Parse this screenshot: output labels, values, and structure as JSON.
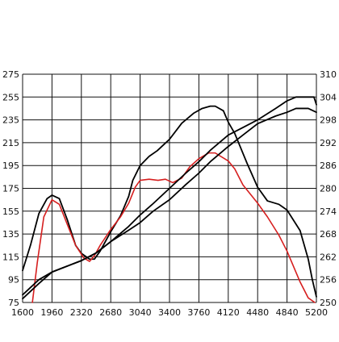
{
  "chart_data": {
    "type": "line",
    "title": "",
    "xlabel": "",
    "ylabel": "",
    "y2label": "",
    "grid": true,
    "legend": "none",
    "x_range": [
      1600,
      5200
    ],
    "y_left_range": [
      75,
      275
    ],
    "y_right_range": [
      250,
      310
    ],
    "x_ticks": [
      1600,
      1960,
      2320,
      2680,
      3040,
      3400,
      3760,
      4120,
      4480,
      4840,
      5200
    ],
    "y_left_ticks": [
      75,
      95,
      115,
      135,
      155,
      175,
      195,
      215,
      235,
      255,
      275
    ],
    "y_right_ticks": [
      250,
      256,
      262,
      268,
      274,
      280,
      286,
      292,
      298,
      304,
      310
    ],
    "colors": {
      "grid": "#111111",
      "black_series": "#000000",
      "red_series": "#d61f1f"
    },
    "series": [
      {
        "color_key": "black_series",
        "axis": "left",
        "values": [
          [
            1600,
            103
          ],
          [
            1700,
            126
          ],
          [
            1800,
            153
          ],
          [
            1900,
            166
          ],
          [
            1960,
            169
          ],
          [
            2050,
            166
          ],
          [
            2150,
            147
          ],
          [
            2250,
            125
          ],
          [
            2320,
            118
          ],
          [
            2420,
            113
          ],
          [
            2480,
            113
          ],
          [
            2550,
            120
          ],
          [
            2680,
            137
          ],
          [
            2800,
            151
          ],
          [
            2900,
            168
          ],
          [
            2950,
            182
          ],
          [
            3040,
            195
          ],
          [
            3150,
            203
          ],
          [
            3250,
            208
          ],
          [
            3400,
            218
          ],
          [
            3550,
            232
          ],
          [
            3700,
            241
          ],
          [
            3800,
            245
          ],
          [
            3900,
            247
          ],
          [
            3960,
            247
          ],
          [
            4060,
            243
          ],
          [
            4120,
            233
          ],
          [
            4200,
            223
          ],
          [
            4350,
            197
          ],
          [
            4480,
            176
          ],
          [
            4600,
            164
          ],
          [
            4740,
            161
          ],
          [
            4840,
            156
          ],
          [
            5000,
            138
          ],
          [
            5100,
            113
          ],
          [
            5150,
            95
          ],
          [
            5200,
            80
          ]
        ]
      },
      {
        "color_key": "red_series",
        "axis": "left",
        "values": [
          [
            1720,
            75
          ],
          [
            1780,
            110
          ],
          [
            1860,
            150
          ],
          [
            1960,
            165
          ],
          [
            2050,
            161
          ],
          [
            2150,
            143
          ],
          [
            2250,
            125
          ],
          [
            2350,
            114
          ],
          [
            2420,
            111
          ],
          [
            2480,
            116
          ],
          [
            2550,
            125
          ],
          [
            2680,
            139
          ],
          [
            2800,
            150
          ],
          [
            2900,
            162
          ],
          [
            2980,
            176
          ],
          [
            3040,
            182
          ],
          [
            3150,
            183
          ],
          [
            3260,
            182
          ],
          [
            3350,
            183
          ],
          [
            3440,
            180
          ],
          [
            3550,
            184
          ],
          [
            3650,
            194
          ],
          [
            3760,
            201
          ],
          [
            3880,
            206
          ],
          [
            3960,
            206
          ],
          [
            4120,
            199
          ],
          [
            4200,
            192
          ],
          [
            4300,
            178
          ],
          [
            4480,
            162
          ],
          [
            4600,
            150
          ],
          [
            4740,
            134
          ],
          [
            4840,
            120
          ],
          [
            5000,
            93
          ],
          [
            5100,
            79
          ],
          [
            5180,
            75
          ]
        ]
      },
      {
        "color_key": "black_series",
        "axis": "right",
        "values": [
          [
            1600,
            251
          ],
          [
            1800,
            255
          ],
          [
            1960,
            258
          ],
          [
            2200,
            260
          ],
          [
            2320,
            261
          ],
          [
            2500,
            263
          ],
          [
            2680,
            266
          ],
          [
            2900,
            270
          ],
          [
            3040,
            273
          ],
          [
            3200,
            276
          ],
          [
            3400,
            280
          ],
          [
            3600,
            284
          ],
          [
            3760,
            287
          ],
          [
            3900,
            290
          ],
          [
            4120,
            294
          ],
          [
            4300,
            296
          ],
          [
            4480,
            298
          ],
          [
            4700,
            301
          ],
          [
            4840,
            303
          ],
          [
            4950,
            304
          ],
          [
            5100,
            304
          ],
          [
            5170,
            304
          ],
          [
            5200,
            302
          ]
        ]
      },
      {
        "color_key": "black_series",
        "axis": "right",
        "values": [
          [
            1600,
            252
          ],
          [
            1800,
            256
          ],
          [
            1960,
            258
          ],
          [
            2200,
            260
          ],
          [
            2320,
            261
          ],
          [
            2500,
            263
          ],
          [
            2680,
            266
          ],
          [
            2900,
            269
          ],
          [
            3040,
            271
          ],
          [
            3200,
            274
          ],
          [
            3400,
            277
          ],
          [
            3600,
            281
          ],
          [
            3760,
            284
          ],
          [
            3900,
            287
          ],
          [
            4120,
            291
          ],
          [
            4300,
            294
          ],
          [
            4480,
            297
          ],
          [
            4700,
            299
          ],
          [
            4840,
            300
          ],
          [
            4950,
            301
          ],
          [
            5100,
            301
          ],
          [
            5200,
            300
          ]
        ]
      }
    ]
  }
}
